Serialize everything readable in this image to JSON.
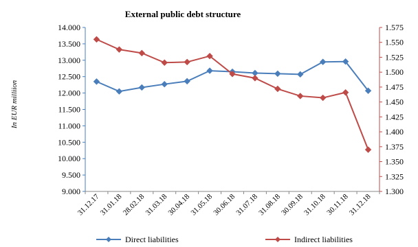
{
  "chart_data": {
    "type": "line",
    "title": "External public debt structure",
    "ylabel": "In EUR milliion",
    "categories": [
      "31.12.17",
      "31.01.18",
      "28.02.18",
      "31.03.18",
      "30.04.18",
      "31.05.18",
      "30.06.18",
      "31.07.18",
      "31.08.18",
      "30.09.18",
      "31.10.18",
      "30.11.18",
      "31.12.18"
    ],
    "y_left": {
      "min": 9000,
      "max": 14000,
      "step": 500,
      "ticks": [
        "9.000",
        "9.500",
        "10.000",
        "10.500",
        "11.000",
        "11.500",
        "12.000",
        "12.500",
        "13.000",
        "13.500",
        "14.000"
      ]
    },
    "y_right": {
      "min": 1300,
      "max": 1575,
      "step": 25,
      "ticks": [
        "1.300",
        "1.325",
        "1.350",
        "1.375",
        "1.400",
        "1.425",
        "1.450",
        "1.475",
        "1.500",
        "1.525",
        "1.550",
        "1.575"
      ]
    },
    "series": [
      {
        "name": "Direct liabilities",
        "axis": "left",
        "color": "#4a7ebb",
        "values": [
          12350,
          12050,
          12170,
          12270,
          12360,
          12680,
          12650,
          12610,
          12590,
          12570,
          12950,
          12960,
          12070
        ]
      },
      {
        "name": "Indirect liabilities",
        "axis": "right",
        "color": "#be4b48",
        "values": [
          1555,
          1538,
          1532,
          1516,
          1517,
          1527,
          1497,
          1490,
          1472,
          1460,
          1457,
          1466,
          1370
        ]
      }
    ],
    "legend": "bottom",
    "grid": false
  }
}
